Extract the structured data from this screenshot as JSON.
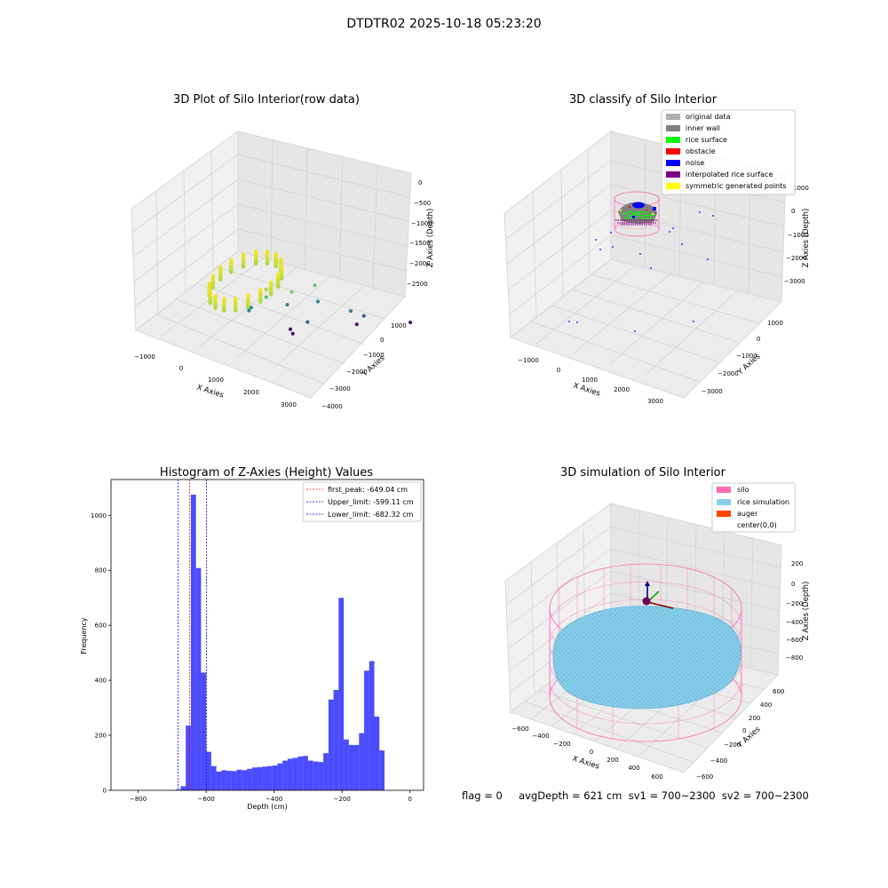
{
  "figure_title": "DTDTR02 2025-10-18 05:23:20",
  "status_line": "flag = 0     avgDepth = 621 cm  sv1 = 700~2300  sv2 = 700~2300",
  "chart_data": [
    {
      "type": "scatter",
      "title": "3D Plot of Silo Interior(row data)",
      "xlabel": "X Axies",
      "ylabel": "Y Axies",
      "zlabel": "Z Axies (Depth)",
      "x_ticks": [
        "−1000",
        "0",
        "1000",
        "2000",
        "3000"
      ],
      "y_ticks": [
        "−4000",
        "−3000",
        "−2000",
        "−1000",
        "0",
        "1000"
      ],
      "z_ticks": [
        "0",
        "−500",
        "−1000",
        "−1500",
        "−2000",
        "−2500"
      ],
      "colormap": "viridis",
      "cluster": {
        "x_center": 300,
        "y_center": 0,
        "z_top": -450,
        "z_bottom": -700
      },
      "scattered_points": [
        {
          "x": 600,
          "y": -500,
          "z": -1100
        },
        {
          "x": 900,
          "y": -200,
          "z": -750
        },
        {
          "x": 1500,
          "y": -600,
          "z": -900
        },
        {
          "x": 1800,
          "y": -1200,
          "z": -1000
        },
        {
          "x": -300,
          "y": -800,
          "z": -1600
        },
        {
          "x": -600,
          "y": -1000,
          "z": -1800
        },
        {
          "x": 500,
          "y": -1400,
          "z": -1700
        },
        {
          "x": 1300,
          "y": -1800,
          "z": -1700
        },
        {
          "x": 1200,
          "y": -1500,
          "z": -2000
        },
        {
          "x": 2600,
          "y": -1800,
          "z": -1700
        },
        {
          "x": 2500,
          "y": -2400,
          "z": -2100
        },
        {
          "x": -200,
          "y": -2200,
          "z": -2700
        },
        {
          "x": 100,
          "y": -2000,
          "z": -2650
        },
        {
          "x": 1600,
          "y": -3000,
          "z": -2700
        },
        {
          "x": 3200,
          "y": -3500,
          "z": -2650
        }
      ]
    },
    {
      "type": "scatter",
      "title": "3D classify of Silo Interior",
      "xlabel": "X Axies",
      "ylabel": "Y Axies",
      "zlabel": "Z Axies (Depth)",
      "x_ticks": [
        "−1000",
        "0",
        "1000",
        "2000",
        "3000"
      ],
      "y_ticks": [
        "−3000",
        "−2000",
        "−1000",
        "0",
        "1000"
      ],
      "z_ticks": [
        "1000",
        "0",
        "−1000",
        "−2000",
        "−3000"
      ],
      "legend": [
        {
          "label": "original data",
          "color": "#b0b0b0"
        },
        {
          "label": "inner wall",
          "color": "#808080"
        },
        {
          "label": "rice surface",
          "color": "#00ff00"
        },
        {
          "label": "obstacle",
          "color": "#ff0000"
        },
        {
          "label": "noise",
          "color": "#0000ff"
        },
        {
          "label": "interpolated rice surface",
          "color": "#800080"
        },
        {
          "label": "symmetric generated points",
          "color": "#ffff00"
        }
      ],
      "legend_position": "top-right"
    },
    {
      "type": "bar",
      "title": "Histogram of Z-Axies (Height) Values",
      "xlabel": "Depth (cm)",
      "ylabel": "Frequency",
      "xlim": [
        -880,
        40
      ],
      "ylim": [
        0,
        1130
      ],
      "x_ticks": [
        -800,
        -600,
        -400,
        -200,
        0
      ],
      "x_tick_labels": [
        "−800",
        "−600",
        "−400",
        "−200",
        "0"
      ],
      "y_ticks": [
        0,
        200,
        400,
        600,
        800,
        1000
      ],
      "bar_color": "#0000ff",
      "bin_start": -690,
      "bin_width": 15,
      "values": [
        3,
        15,
        235,
        1075,
        808,
        428,
        140,
        88,
        68,
        73,
        71,
        70,
        75,
        73,
        78,
        83,
        84,
        86,
        88,
        90,
        98,
        108,
        115,
        118,
        123,
        125,
        108,
        105,
        103,
        135,
        330,
        365,
        700,
        185,
        165,
        165,
        208,
        435,
        470,
        268,
        145
      ],
      "reference_lines": [
        {
          "label": "first_peak: -649.04 cm",
          "value": -649.04,
          "color": "#ff0000"
        },
        {
          "label": "Upper_limit: -599.11 cm",
          "value": -599.11,
          "color": "#0000cc"
        },
        {
          "label": "Lower_limit: -682.32 cm",
          "value": -682.32,
          "color": "#0000cc"
        }
      ],
      "legend_position": "top-right"
    },
    {
      "type": "scatter",
      "title": "3D simulation of Silo Interior",
      "xlabel": "X Axies",
      "ylabel": "Y Axies",
      "zlabel": "Z Axies (Depth)",
      "x_ticks": [
        "−600",
        "−400",
        "−200",
        "0",
        "200",
        "400",
        "600"
      ],
      "y_ticks": [
        "−600",
        "−400",
        "−200",
        "0",
        "200",
        "400",
        "600"
      ],
      "z_ticks": [
        "200",
        "0",
        "−200",
        "−400",
        "−600",
        "−800"
      ],
      "legend": [
        {
          "label": "silo",
          "color": "#ff69b4"
        },
        {
          "label": "rice simulation",
          "color": "#87ceeb"
        },
        {
          "label": "auger",
          "color": "#ff4500"
        },
        {
          "label": "center(0,0)",
          "color": ""
        }
      ],
      "legend_position": "top-right"
    }
  ]
}
